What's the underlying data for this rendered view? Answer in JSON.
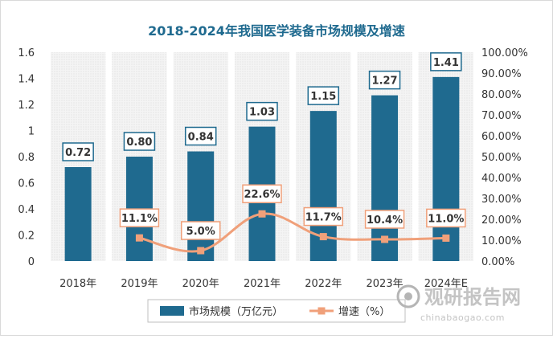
{
  "chart_data": {
    "type": "bar",
    "title": "2018-2024年我国医学装备市场规模及增速",
    "categories": [
      "2018年",
      "2019年",
      "2020年",
      "2021年",
      "2022年",
      "2023年",
      "2024年E"
    ],
    "series": [
      {
        "name": "市场规模（万亿元）",
        "type": "bar",
        "axis": "left",
        "values": [
          0.72,
          0.8,
          0.84,
          1.03,
          1.15,
          1.27,
          1.41
        ],
        "labels": [
          "0.72",
          "0.80",
          "0.84",
          "1.03",
          "1.15",
          "1.27",
          "1.41"
        ],
        "color": "#1f6a8f"
      },
      {
        "name": "增速（%）",
        "type": "line",
        "axis": "right",
        "values": [
          null,
          11.1,
          5.0,
          22.6,
          11.7,
          10.4,
          11.0
        ],
        "labels": [
          null,
          "11.1%",
          "5.0%",
          "22.6%",
          "11.7%",
          "10.4%",
          "11.0%"
        ],
        "color": "#f0a07a"
      }
    ],
    "y_left": {
      "ylim": [
        0,
        1.6
      ],
      "ticks": [
        "0",
        "0.2",
        "0.4",
        "0.6",
        "0.8",
        "1",
        "1.2",
        "1.4",
        "1.6"
      ]
    },
    "y_right": {
      "ylim": [
        0,
        100
      ],
      "ticks": [
        "0.00%",
        "10.00%",
        "20.00%",
        "30.00%",
        "40.00%",
        "50.00%",
        "60.00%",
        "70.00%",
        "80.00%",
        "90.00%",
        "100.00%"
      ]
    },
    "legend_placement": "bottom",
    "grid": false
  },
  "watermark": {
    "text": "观研报告网",
    "url_text": "chinabaogao.com"
  }
}
